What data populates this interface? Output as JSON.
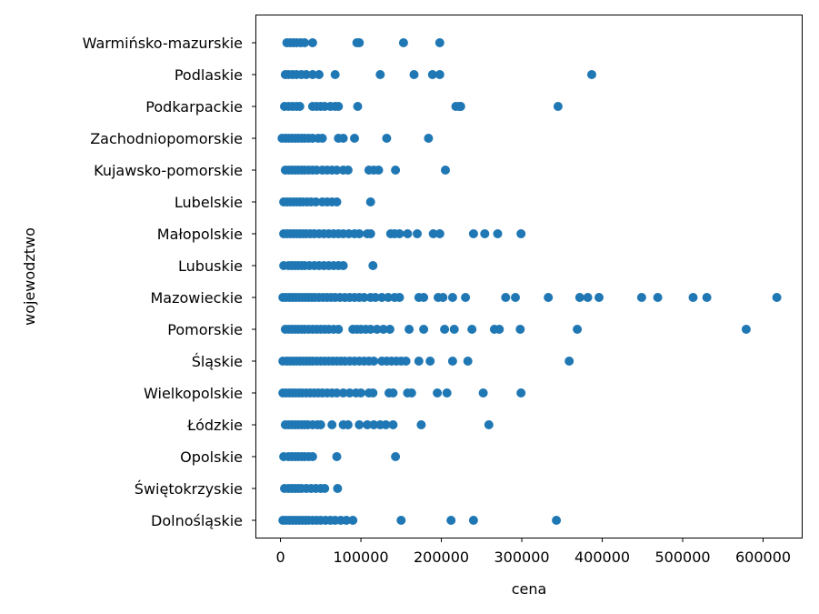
{
  "chart_data": {
    "type": "scatter",
    "title": "",
    "xlabel": "cena",
    "ylabel": "wojewodztwo",
    "xlim": [
      -30000,
      648000
    ],
    "xticks": [
      0,
      100000,
      200000,
      300000,
      400000,
      500000,
      600000
    ],
    "xtick_labels": [
      "0",
      "100000",
      "200000",
      "300000",
      "400000",
      "500000",
      "600000"
    ],
    "grid": false,
    "marker_color": "#1f77b4",
    "categories": [
      "Dolnośląskie",
      "Świętokrzyskie",
      "Opolskie",
      "Łódzkie",
      "Wielkopolskie",
      "Śląskie",
      "Pomorskie",
      "Mazowieckie",
      "Lubuskie",
      "Małopolskie",
      "Lubelskie",
      "Kujawsko-pomorskie",
      "Zachodniopomorskie",
      "Podkarpackie",
      "Podlaskie",
      "Warmińsko-mazurskie"
    ],
    "points": [
      {
        "category": "Warmińsko-mazurskie",
        "x": [
          8000,
          12000,
          16000,
          20000,
          25000,
          30000,
          40000,
          95000,
          98000,
          153000,
          198000
        ]
      },
      {
        "category": "Podlaskie",
        "x": [
          6000,
          10000,
          15000,
          20000,
          26000,
          32000,
          40000,
          48000,
          68000,
          124000,
          166000,
          189000,
          198000,
          387000
        ]
      },
      {
        "category": "Podkarpackie",
        "x": [
          5000,
          10000,
          15000,
          20000,
          24000,
          40000,
          45000,
          50000,
          55000,
          62000,
          68000,
          72000,
          96000,
          218000,
          222000,
          224000,
          345000
        ]
      },
      {
        "category": "Zachodniopomorskie",
        "x": [
          2000,
          6000,
          10000,
          14000,
          18000,
          22000,
          26000,
          30000,
          35000,
          40000,
          47000,
          52000,
          72000,
          78000,
          92000,
          132000,
          184000
        ]
      },
      {
        "category": "Kujawsko-pomorskie",
        "x": [
          6000,
          10000,
          14000,
          18000,
          22000,
          26000,
          30000,
          35000,
          40000,
          45000,
          52000,
          58000,
          64000,
          70000,
          78000,
          84000,
          110000,
          116000,
          122000,
          143000,
          205000
        ]
      },
      {
        "category": "Lubelskie",
        "x": [
          4000,
          8000,
          12000,
          16000,
          20000,
          24000,
          28000,
          33000,
          38000,
          44000,
          52000,
          58000,
          64000,
          70000,
          112000
        ]
      },
      {
        "category": "Małopolskie",
        "x": [
          4000,
          8000,
          12000,
          16000,
          20000,
          24000,
          28000,
          32000,
          37000,
          42000,
          48000,
          54000,
          60000,
          66000,
          72000,
          78000,
          85000,
          92000,
          98000,
          108000,
          112000,
          137000,
          142000,
          148000,
          158000,
          170000,
          190000,
          198000,
          240000,
          254000,
          270000,
          299000
        ]
      },
      {
        "category": "Lubuskie",
        "x": [
          4000,
          10000,
          14000,
          18000,
          22000,
          26000,
          30000,
          36000,
          42000,
          48000,
          54000,
          60000,
          66000,
          72000,
          78000,
          115000
        ]
      },
      {
        "category": "Mazowieckie",
        "x": [
          3000,
          7000,
          11000,
          15000,
          19000,
          23000,
          27000,
          31000,
          35000,
          39000,
          43000,
          48000,
          53000,
          58000,
          63000,
          68000,
          74000,
          80000,
          86000,
          92000,
          98000,
          104000,
          112000,
          118000,
          126000,
          134000,
          142000,
          148000,
          172000,
          178000,
          196000,
          202000,
          214000,
          230000,
          280000,
          292000,
          333000,
          372000,
          382000,
          396000,
          449000,
          469000,
          513000,
          530000,
          617000
        ]
      },
      {
        "category": "Pomorskie",
        "x": [
          6000,
          10000,
          14000,
          18000,
          22000,
          26000,
          30000,
          35000,
          40000,
          45000,
          50000,
          55000,
          60000,
          66000,
          72000,
          90000,
          95000,
          100000,
          106000,
          112000,
          120000,
          128000,
          136000,
          160000,
          178000,
          204000,
          216000,
          238000,
          266000,
          272000,
          298000,
          369000,
          579000
        ]
      },
      {
        "category": "Śląskie",
        "x": [
          3000,
          8000,
          12000,
          16000,
          20000,
          24000,
          28000,
          32000,
          36000,
          40000,
          45000,
          50000,
          55000,
          60000,
          65000,
          70000,
          75000,
          80000,
          86000,
          92000,
          98000,
          104000,
          110000,
          116000,
          126000,
          132000,
          138000,
          144000,
          150000,
          156000,
          172000,
          186000,
          214000,
          233000,
          359000
        ]
      },
      {
        "category": "Wielkopolskie",
        "x": [
          3000,
          7000,
          11000,
          15000,
          19000,
          23000,
          27000,
          32000,
          37000,
          42000,
          47000,
          52000,
          58000,
          64000,
          70000,
          78000,
          86000,
          94000,
          100000,
          110000,
          115000,
          135000,
          140000,
          158000,
          163000,
          195000,
          207000,
          252000,
          299000
        ]
      },
      {
        "category": "Łódzkie",
        "x": [
          6000,
          10000,
          14000,
          18000,
          22000,
          26000,
          30000,
          34000,
          40000,
          46000,
          50000,
          64000,
          78000,
          84000,
          98000,
          108000,
          116000,
          124000,
          131000,
          140000,
          175000,
          259000
        ]
      },
      {
        "category": "Opolskie",
        "x": [
          4000,
          10000,
          14000,
          18000,
          22000,
          26000,
          30000,
          35000,
          40000,
          70000,
          143000
        ]
      },
      {
        "category": "Świętokrzyskie",
        "x": [
          5000,
          10000,
          14000,
          18000,
          22000,
          26000,
          32000,
          38000,
          44000,
          50000,
          55000,
          71000
        ]
      },
      {
        "category": "Dolnośląskie",
        "x": [
          3000,
          7000,
          11000,
          15000,
          19000,
          23000,
          27000,
          31000,
          35000,
          40000,
          45000,
          50000,
          56000,
          62000,
          68000,
          75000,
          82000,
          90000,
          150000,
          212000,
          240000,
          343000
        ]
      }
    ]
  }
}
